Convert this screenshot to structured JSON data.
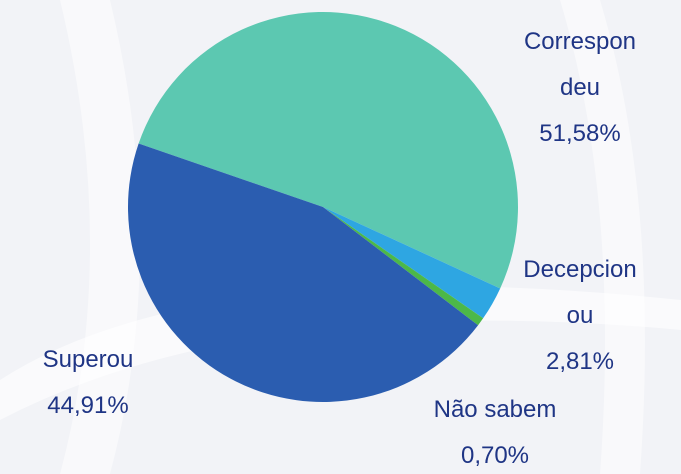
{
  "chart_data": {
    "type": "pie",
    "categories": [
      "Correspondeu",
      "Decepcionou",
      "Não sabem",
      "Superou"
    ],
    "values": [
      51.58,
      2.81,
      0.7,
      44.91
    ],
    "value_labels": [
      "51,58%",
      "2,81%",
      "0,70%",
      "44,91%"
    ],
    "colors": [
      "#5cc8b1",
      "#2ea6e2",
      "#4cb848",
      "#2b5db0"
    ]
  }
}
